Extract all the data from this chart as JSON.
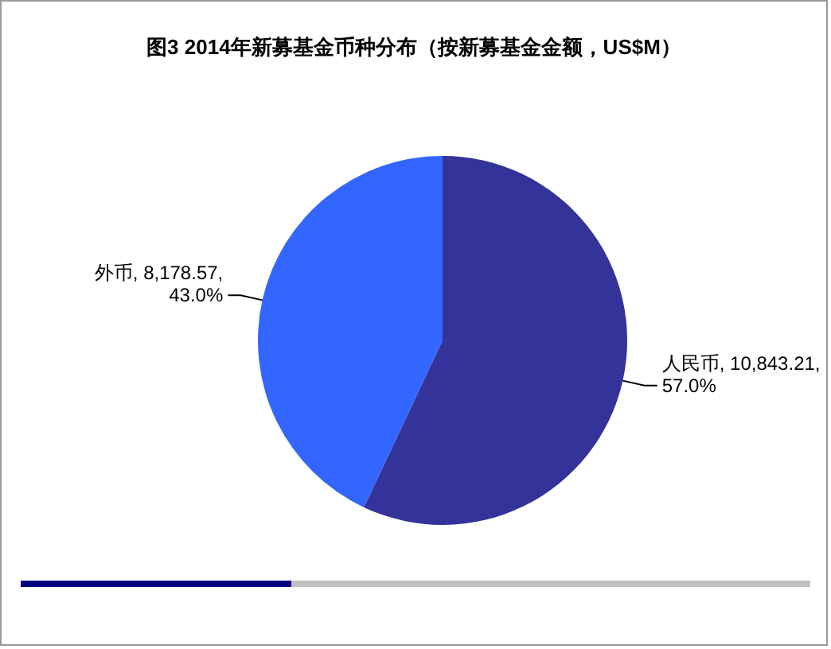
{
  "chart_data": {
    "type": "pie",
    "title": "图3 2014年新募基金币种分布（按新募基金金额，US$M）",
    "categories": [
      "人民币",
      "外币"
    ],
    "values": [
      10843.21,
      8178.57
    ],
    "colors": [
      "#333399",
      "#3366ff"
    ],
    "value_labels": [
      "10,843.21,\n57.0%",
      "8,178.57,\n43.0%"
    ],
    "legend": false
  }
}
